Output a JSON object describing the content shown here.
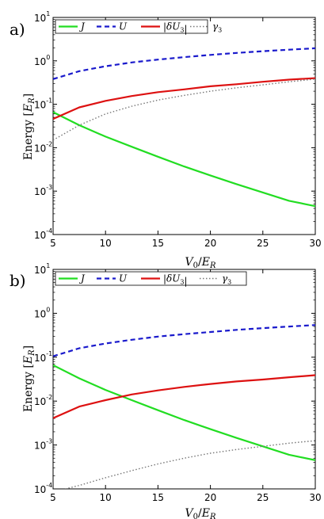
{
  "colors": {
    "J": "#22dd22",
    "U": "#1a1acc",
    "dU3": "#dd1111",
    "gamma3": "#777777"
  },
  "chart_data": [
    {
      "type": "line",
      "panel_label": "a)",
      "xlabel": "V₀/E_R",
      "ylabel": "Energy [E_R]",
      "xlim": [
        5,
        30
      ],
      "ylim": [
        0.0001,
        10
      ],
      "yscale": "log",
      "xticks": [
        "5",
        "10",
        "15",
        "20",
        "25",
        "30"
      ],
      "yticks": [
        {
          "base": "10",
          "exp": "-4"
        },
        {
          "base": "10",
          "exp": "-3"
        },
        {
          "base": "10",
          "exp": "-2"
        },
        {
          "base": "10",
          "exp": "-1"
        },
        {
          "base": "10",
          "exp": "0"
        },
        {
          "base": "10",
          "exp": "1"
        }
      ],
      "legend_position": "top-left",
      "series": [
        {
          "key": "J",
          "name": "J",
          "style": "solid",
          "x": [
            5,
            7.5,
            10,
            12.5,
            15,
            17.5,
            20,
            22.5,
            25,
            27.5,
            30
          ],
          "y": [
            0.066,
            0.033,
            0.018,
            0.0105,
            0.0062,
            0.0037,
            0.0023,
            0.00145,
            0.00093,
            0.0006,
            0.00045
          ]
        },
        {
          "key": "U",
          "name": "U",
          "style": "dashed",
          "x": [
            5,
            7.5,
            10,
            12.5,
            15,
            17.5,
            20,
            22.5,
            25,
            27.5,
            30
          ],
          "y": [
            0.38,
            0.58,
            0.75,
            0.92,
            1.07,
            1.22,
            1.37,
            1.52,
            1.67,
            1.81,
            1.95
          ]
        },
        {
          "key": "dU3",
          "name": "|δU₃|",
          "style": "solid",
          "x": [
            5,
            7.5,
            10,
            12.5,
            15,
            17.5,
            20,
            22.5,
            25,
            27.5,
            30
          ],
          "y": [
            0.046,
            0.085,
            0.12,
            0.155,
            0.19,
            0.22,
            0.26,
            0.29,
            0.33,
            0.37,
            0.4
          ]
        },
        {
          "key": "gamma3",
          "name": "γ₃",
          "style": "dotted",
          "x": [
            5,
            7.5,
            10,
            12.5,
            15,
            17.5,
            20,
            22.5,
            25,
            27.5,
            30
          ],
          "y": [
            0.015,
            0.033,
            0.06,
            0.09,
            0.125,
            0.16,
            0.2,
            0.24,
            0.28,
            0.33,
            0.38
          ]
        }
      ]
    },
    {
      "type": "line",
      "panel_label": "b)",
      "xlabel": "V₀/E_R",
      "ylabel": "Energy [E_R]",
      "xlim": [
        5,
        30
      ],
      "ylim": [
        0.0001,
        10
      ],
      "yscale": "log",
      "xticks": [
        "5",
        "10",
        "15",
        "20",
        "25",
        "30"
      ],
      "yticks": [
        {
          "base": "10",
          "exp": "-4"
        },
        {
          "base": "10",
          "exp": "-3"
        },
        {
          "base": "10",
          "exp": "-2"
        },
        {
          "base": "10",
          "exp": "-1"
        },
        {
          "base": "10",
          "exp": "0"
        },
        {
          "base": "10",
          "exp": "1"
        }
      ],
      "legend_position": "top",
      "series": [
        {
          "key": "J",
          "name": "J",
          "style": "solid",
          "x": [
            5,
            7.5,
            10,
            12.5,
            15,
            17.5,
            20,
            22.5,
            25,
            27.5,
            30
          ],
          "y": [
            0.066,
            0.033,
            0.018,
            0.0105,
            0.0062,
            0.0037,
            0.0023,
            0.00145,
            0.00093,
            0.0006,
            0.00045
          ]
        },
        {
          "key": "U",
          "name": "U",
          "style": "dashed",
          "x": [
            5,
            7.5,
            10,
            12.5,
            15,
            17.5,
            20,
            22.5,
            25,
            27.5,
            30
          ],
          "y": [
            0.105,
            0.16,
            0.205,
            0.25,
            0.295,
            0.335,
            0.375,
            0.42,
            0.46,
            0.5,
            0.54
          ]
        },
        {
          "key": "dU3",
          "name": "|δU₃|",
          "style": "solid",
          "x": [
            5,
            7.5,
            10,
            12.5,
            15,
            17.5,
            20,
            22.5,
            25,
            27.5,
            30
          ],
          "y": [
            0.0041,
            0.0075,
            0.0105,
            0.0142,
            0.0175,
            0.021,
            0.0245,
            0.028,
            0.031,
            0.035,
            0.039
          ]
        },
        {
          "key": "gamma3",
          "name": "γ₃",
          "style": "dotted",
          "x": [
            5,
            7.5,
            10,
            12.5,
            15,
            17.5,
            20,
            22.5,
            25,
            27.5,
            30
          ],
          "y": [
            8.5e-05,
            0.00012,
            0.00018,
            0.00026,
            0.00037,
            0.0005,
            0.00065,
            0.00079,
            0.00093,
            0.0011,
            0.00125
          ]
        }
      ]
    }
  ]
}
